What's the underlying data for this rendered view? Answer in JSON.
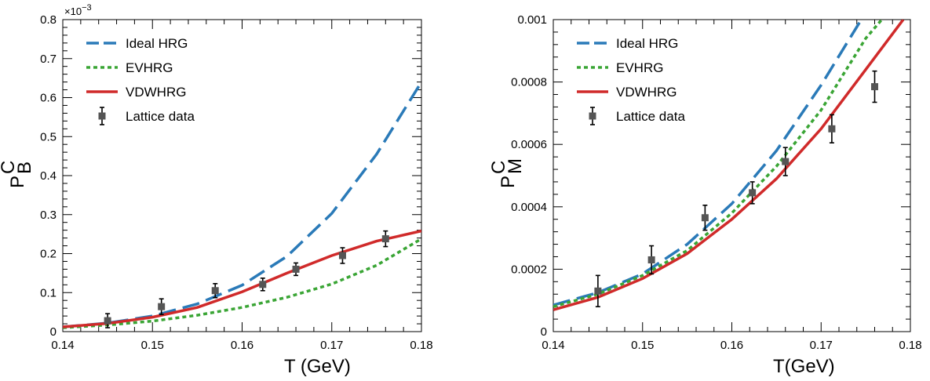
{
  "chart_data": [
    {
      "type": "line",
      "panel": "left",
      "xlabel": "T (GeV)",
      "ylabel_main": "P",
      "ylabel_sup": "C",
      "ylabel_sub": "B",
      "y_multiplier": "×10",
      "y_multiplier_exp": "−3",
      "xlim": [
        0.14,
        0.18
      ],
      "ylim": [
        0,
        0.8
      ],
      "x_ticks": [
        "0.14",
        "0.15",
        "0.16",
        "0.17",
        "0.18"
      ],
      "y_ticks": [
        "0",
        "0.1",
        "0.2",
        "0.3",
        "0.4",
        "0.5",
        "0.6",
        "0.7",
        "0.8"
      ],
      "grid": false,
      "legend_position": "top-left",
      "series": [
        {
          "name": "Ideal HRG",
          "style": "dashed",
          "color": "#2a7ab8",
          "x": [
            0.14,
            0.145,
            0.15,
            0.155,
            0.16,
            0.165,
            0.17,
            0.175,
            0.18
          ],
          "y": [
            0.012,
            0.022,
            0.04,
            0.071,
            0.119,
            0.193,
            0.303,
            0.455,
            0.64
          ]
        },
        {
          "name": "EVHRG",
          "style": "dotted",
          "color": "#3aa535",
          "x": [
            0.14,
            0.145,
            0.15,
            0.155,
            0.16,
            0.165,
            0.17,
            0.175,
            0.18
          ],
          "y": [
            0.01,
            0.017,
            0.027,
            0.042,
            0.062,
            0.088,
            0.122,
            0.17,
            0.238
          ]
        },
        {
          "name": "VDWHRG",
          "style": "solid",
          "color": "#d02a2a",
          "x": [
            0.14,
            0.145,
            0.15,
            0.155,
            0.16,
            0.165,
            0.17,
            0.175,
            0.18
          ],
          "y": [
            0.012,
            0.021,
            0.037,
            0.062,
            0.102,
            0.15,
            0.195,
            0.232,
            0.258
          ]
        }
      ],
      "lattice": {
        "name": "Lattice data",
        "color": "#555555",
        "x": [
          0.145,
          0.151,
          0.157,
          0.1623,
          0.166,
          0.1712,
          0.176
        ],
        "y": [
          0.028,
          0.064,
          0.105,
          0.121,
          0.16,
          0.195,
          0.238
        ],
        "err": [
          0.018,
          0.02,
          0.018,
          0.016,
          0.016,
          0.02,
          0.02
        ]
      }
    },
    {
      "type": "line",
      "panel": "right",
      "xlabel": "T(GeV)",
      "ylabel_main": "P",
      "ylabel_sup": "C",
      "ylabel_sub": "M",
      "xlim": [
        0.14,
        0.18
      ],
      "ylim": [
        0,
        0.001
      ],
      "x_ticks": [
        "0.14",
        "0.15",
        "0.16",
        "0.17",
        "0.18"
      ],
      "y_ticks": [
        "0",
        "0.0002",
        "0.0004",
        "0.0006",
        "0.0008",
        "0.001"
      ],
      "grid": false,
      "legend_position": "top-left",
      "series": [
        {
          "name": "Ideal HRG",
          "style": "dashed",
          "color": "#2a7ab8",
          "x": [
            0.14,
            0.145,
            0.15,
            0.155,
            0.16,
            0.165,
            0.17,
            0.1745
          ],
          "y": [
            8.5e-05,
            0.000125,
            0.000185,
            0.00028,
            0.00041,
            0.00058,
            0.00079,
            0.001
          ]
        },
        {
          "name": "EVHRG",
          "style": "dotted",
          "color": "#3aa535",
          "x": [
            0.14,
            0.145,
            0.15,
            0.155,
            0.16,
            0.165,
            0.17,
            0.175,
            0.1768
          ],
          "y": [
            8e-05,
            0.00012,
            0.00018,
            0.00026,
            0.00038,
            0.00053,
            0.00071,
            0.00094,
            0.001
          ]
        },
        {
          "name": "VDWHRG",
          "style": "solid",
          "color": "#d02a2a",
          "x": [
            0.14,
            0.145,
            0.15,
            0.155,
            0.16,
            0.165,
            0.17,
            0.175,
            0.1792
          ],
          "y": [
            7e-05,
            0.00011,
            0.00017,
            0.00025,
            0.00036,
            0.00049,
            0.00065,
            0.00084,
            0.001
          ]
        }
      ],
      "lattice": {
        "name": "Lattice data",
        "color": "#555555",
        "x": [
          0.145,
          0.151,
          0.157,
          0.1623,
          0.166,
          0.1712,
          0.176
        ],
        "y": [
          0.00013,
          0.00023,
          0.000365,
          0.000445,
          0.000545,
          0.00065,
          0.000785
        ],
        "err": [
          5e-05,
          4.5e-05,
          4e-05,
          3.5e-05,
          4.5e-05,
          4.5e-05,
          5e-05
        ]
      }
    }
  ]
}
